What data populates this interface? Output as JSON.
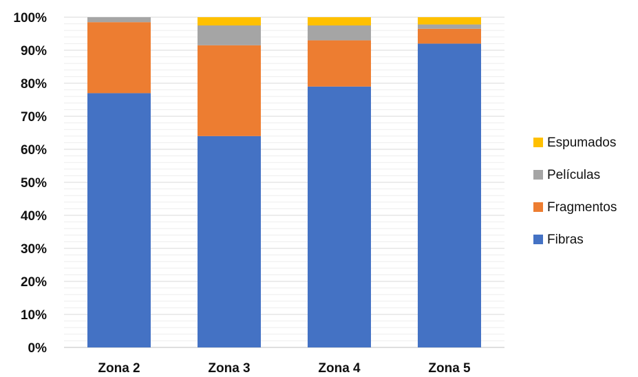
{
  "chart_data": {
    "type": "bar",
    "stacked": true,
    "categories": [
      "Zona 2",
      "Zona 3",
      "Zona 4",
      "Zona 5"
    ],
    "series": [
      {
        "name": "Fibras",
        "color": "#4472C4",
        "values": [
          77,
          64,
          79,
          92
        ]
      },
      {
        "name": "Fragmentos",
        "color": "#ED7D31",
        "values": [
          21.5,
          27.5,
          14,
          4.5
        ]
      },
      {
        "name": "Películas",
        "color": "#A5A5A5",
        "values": [
          1.5,
          6,
          4.5,
          1.3
        ]
      },
      {
        "name": "Espumados",
        "color": "#FFC000",
        "values": [
          0,
          2.5,
          2.5,
          2.2
        ]
      }
    ],
    "ylim": [
      0,
      100
    ],
    "yticks": [
      "0%",
      "10%",
      "20%",
      "30%",
      "40%",
      "50%",
      "60%",
      "70%",
      "80%",
      "90%",
      "100%"
    ],
    "ytick_values": [
      0,
      10,
      20,
      30,
      40,
      50,
      60,
      70,
      80,
      90,
      100
    ],
    "grid": true,
    "legend_position": "right",
    "legend_order": [
      "Espumados",
      "Películas",
      "Fragmentos",
      "Fibras"
    ]
  }
}
